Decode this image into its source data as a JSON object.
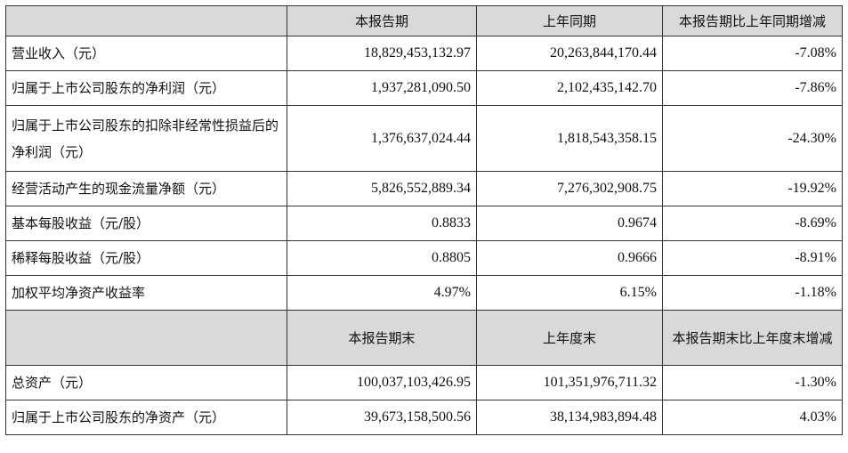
{
  "header1": {
    "col1": "本报告期",
    "col2": "上年同期",
    "col3": "本报告期比上年同期增减"
  },
  "rows1": [
    {
      "label": "营业收入（元）",
      "current": "18,829,453,132.97",
      "prior": "20,263,844,170.44",
      "change": "-7.08%"
    },
    {
      "label": "归属于上市公司股东的净利润（元）",
      "current": "1,937,281,090.50",
      "prior": "2,102,435,142.70",
      "change": "-7.86%"
    },
    {
      "label": "归属于上市公司股东的扣除非经常性损益后的净利润（元）",
      "current": "1,376,637,024.44",
      "prior": "1,818,543,358.15",
      "change": "-24.30%"
    },
    {
      "label": "经营活动产生的现金流量净额（元）",
      "current": "5,826,552,889.34",
      "prior": "7,276,302,908.75",
      "change": "-19.92%"
    },
    {
      "label": "基本每股收益（元/股）",
      "current": "0.8833",
      "prior": "0.9674",
      "change": "-8.69%"
    },
    {
      "label": "稀释每股收益（元/股）",
      "current": "0.8805",
      "prior": "0.9666",
      "change": "-8.91%"
    },
    {
      "label": "加权平均净资产收益率",
      "current": "4.97%",
      "prior": "6.15%",
      "change": "-1.18%"
    }
  ],
  "header2": {
    "col1": "本报告期末",
    "col2": "上年度末",
    "col3": "本报告期末比上年度末增减"
  },
  "rows2": [
    {
      "label": "总资产（元）",
      "current": "100,037,103,426.95",
      "prior": "101,351,976,711.32",
      "change": "-1.30%"
    },
    {
      "label": "归属于上市公司股东的净资产（元）",
      "current": "39,673,158,500.56",
      "prior": "38,134,983,894.48",
      "change": "4.03%"
    }
  ]
}
